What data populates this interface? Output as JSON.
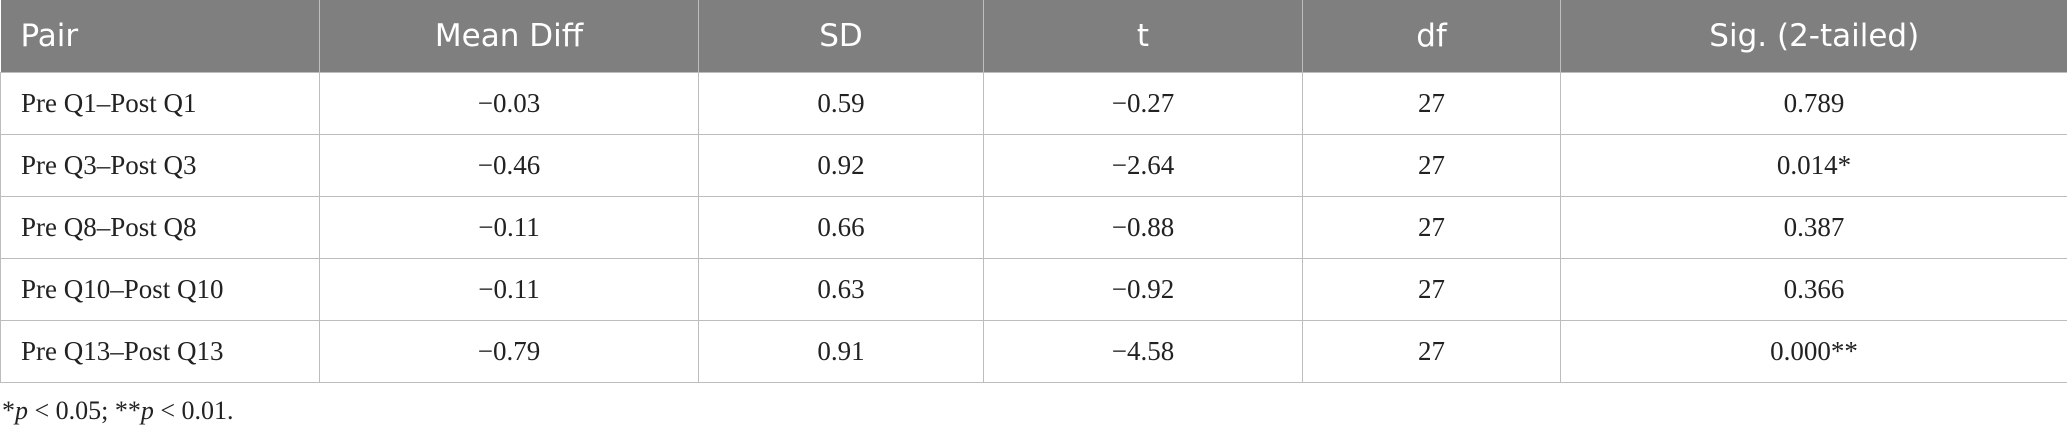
{
  "table": {
    "headers": [
      "Pair",
      "Mean Diff",
      "SD",
      "t",
      "df",
      "Sig. (2-tailed)"
    ],
    "rows": [
      [
        "Pre Q1–Post Q1",
        "−0.03",
        "0.59",
        "−0.27",
        "27",
        "0.789"
      ],
      [
        "Pre Q3–Post Q3",
        "−0.46",
        "0.92",
        "−2.64",
        "27",
        "0.014*"
      ],
      [
        "Pre Q8–Post Q8",
        "−0.11",
        "0.66",
        "−0.88",
        "27",
        "0.387"
      ],
      [
        "Pre Q10–Post Q10",
        "−0.11",
        "0.63",
        "−0.92",
        "27",
        "0.366"
      ],
      [
        "Pre Q13–Post Q13",
        "−0.79",
        "0.91",
        "−4.58",
        "27",
        "0.000**"
      ]
    ]
  },
  "footnote": [
    "*",
    "p",
    " < 0.05; **",
    "p",
    " < 0.01."
  ]
}
